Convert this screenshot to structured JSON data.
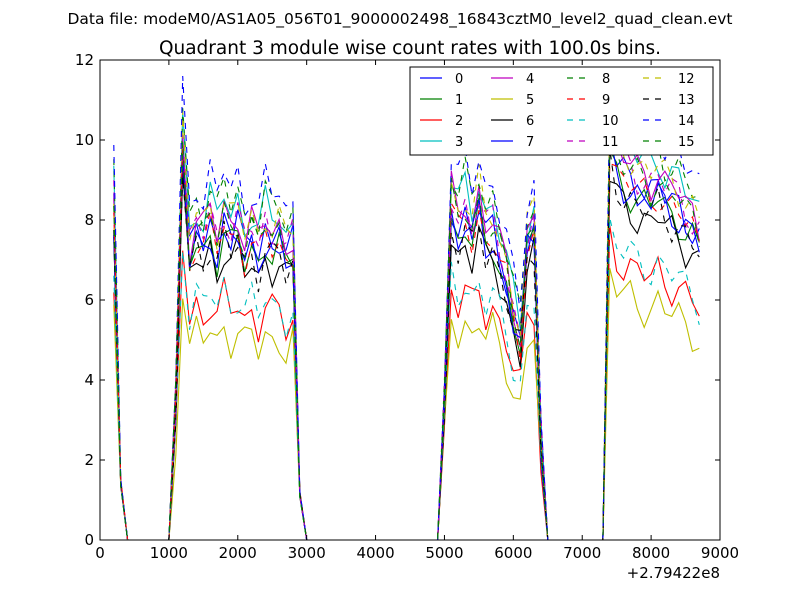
{
  "suptitle": "Data file: modeM0/AS1A05_056T01_9000002498_16843cztM0_level2_quad_clean.evt",
  "chart_data": {
    "type": "line",
    "title": "Quadrant 3 module wise count rates with 100.0s bins.",
    "xlabel": "",
    "ylabel": "",
    "x_offset_label": "+2.79422e8",
    "xlim": [
      0,
      9000
    ],
    "ylim": [
      0,
      12
    ],
    "xticks": [
      0,
      1000,
      2000,
      3000,
      4000,
      5000,
      6000,
      7000,
      8000,
      9000
    ],
    "yticks": [
      0,
      2,
      4,
      6,
      8,
      10,
      12
    ],
    "legend_position": "top-right",
    "segments": [
      {
        "name": "gap-1",
        "x": [
          200,
          300,
          400,
          500,
          600,
          700,
          800,
          900,
          1000,
          1100
        ],
        "base": [
          8.2,
          1.5,
          0.0,
          0.0,
          0.0,
          0.0,
          0.0,
          0.0,
          0.0,
          3.5
        ]
      },
      {
        "name": "orbit-1",
        "x": [
          1200,
          1300,
          1400,
          1500,
          1600,
          1700,
          1800,
          1900,
          2000,
          2100,
          2200,
          2300,
          2400,
          2500,
          2600,
          2700,
          2800
        ],
        "base": [
          9.6,
          7.0,
          7.6,
          7.3,
          7.8,
          7.2,
          7.9,
          7.4,
          7.7,
          7.1,
          7.5,
          7.0,
          7.6,
          7.3,
          7.4,
          6.9,
          7.2
        ]
      },
      {
        "name": "gap-2",
        "x": [
          2900,
          3000,
          3100,
          3500,
          4000,
          4500,
          4900,
          5000
        ],
        "base": [
          1.2,
          0.0,
          0.0,
          0.0,
          0.0,
          0.0,
          0.0,
          3.5
        ]
      },
      {
        "name": "orbit-2",
        "x": [
          5100,
          5200,
          5300,
          5400,
          5500,
          5600,
          5700,
          5800,
          5900,
          6000,
          6100,
          6200,
          6300,
          6400
        ],
        "base": [
          8.2,
          7.6,
          8.0,
          7.5,
          8.2,
          7.4,
          7.6,
          7.0,
          6.4,
          5.5,
          4.9,
          7.2,
          7.6,
          2.5
        ]
      },
      {
        "name": "gap-3",
        "x": [
          6500,
          6600,
          7000,
          7300
        ],
        "base": [
          0.0,
          0.0,
          0.0,
          0.0
        ]
      },
      {
        "name": "orbit-3",
        "x": [
          7400,
          7500,
          7600,
          7700,
          7800,
          7900,
          8000,
          8100,
          8200,
          8300,
          8400,
          8500,
          8600,
          8700
        ],
        "base": [
          9.8,
          9.2,
          9.0,
          8.9,
          8.7,
          8.6,
          8.5,
          8.7,
          8.4,
          8.3,
          8.2,
          7.9,
          7.7,
          7.4
        ]
      }
    ],
    "series": [
      {
        "name": "0",
        "color": "#0000ff",
        "style": "solid",
        "scale": 1.02
      },
      {
        "name": "1",
        "color": "#008000",
        "style": "solid",
        "scale": 0.98
      },
      {
        "name": "2",
        "color": "#ff0000",
        "style": "solid",
        "scale": 0.77
      },
      {
        "name": "3",
        "color": "#00bfbf",
        "style": "solid",
        "scale": 1.1
      },
      {
        "name": "4",
        "color": "#bf00bf",
        "style": "solid",
        "scale": 1.06
      },
      {
        "name": "5",
        "color": "#bfbf00",
        "style": "solid",
        "scale": 0.68
      },
      {
        "name": "6",
        "color": "#000000",
        "style": "solid",
        "scale": 0.93
      },
      {
        "name": "7",
        "color": "#0000ff",
        "style": "solid",
        "scale": 0.99
      },
      {
        "name": "8",
        "color": "#008000",
        "style": "dashed",
        "scale": 1.13
      },
      {
        "name": "9",
        "color": "#ff0000",
        "style": "dashed",
        "scale": 1.0
      },
      {
        "name": "10",
        "color": "#00bfbf",
        "style": "dashed",
        "scale": 0.8
      },
      {
        "name": "11",
        "color": "#bf00bf",
        "style": "dashed",
        "scale": 1.05
      },
      {
        "name": "12",
        "color": "#bfbf00",
        "style": "dashed",
        "scale": 1.08
      },
      {
        "name": "13",
        "color": "#000000",
        "style": "dashed",
        "scale": 0.96
      },
      {
        "name": "14",
        "color": "#0000ff",
        "style": "dashed",
        "scale": 1.18
      },
      {
        "name": "15",
        "color": "#008000",
        "style": "dashed",
        "scale": 1.04
      }
    ]
  }
}
